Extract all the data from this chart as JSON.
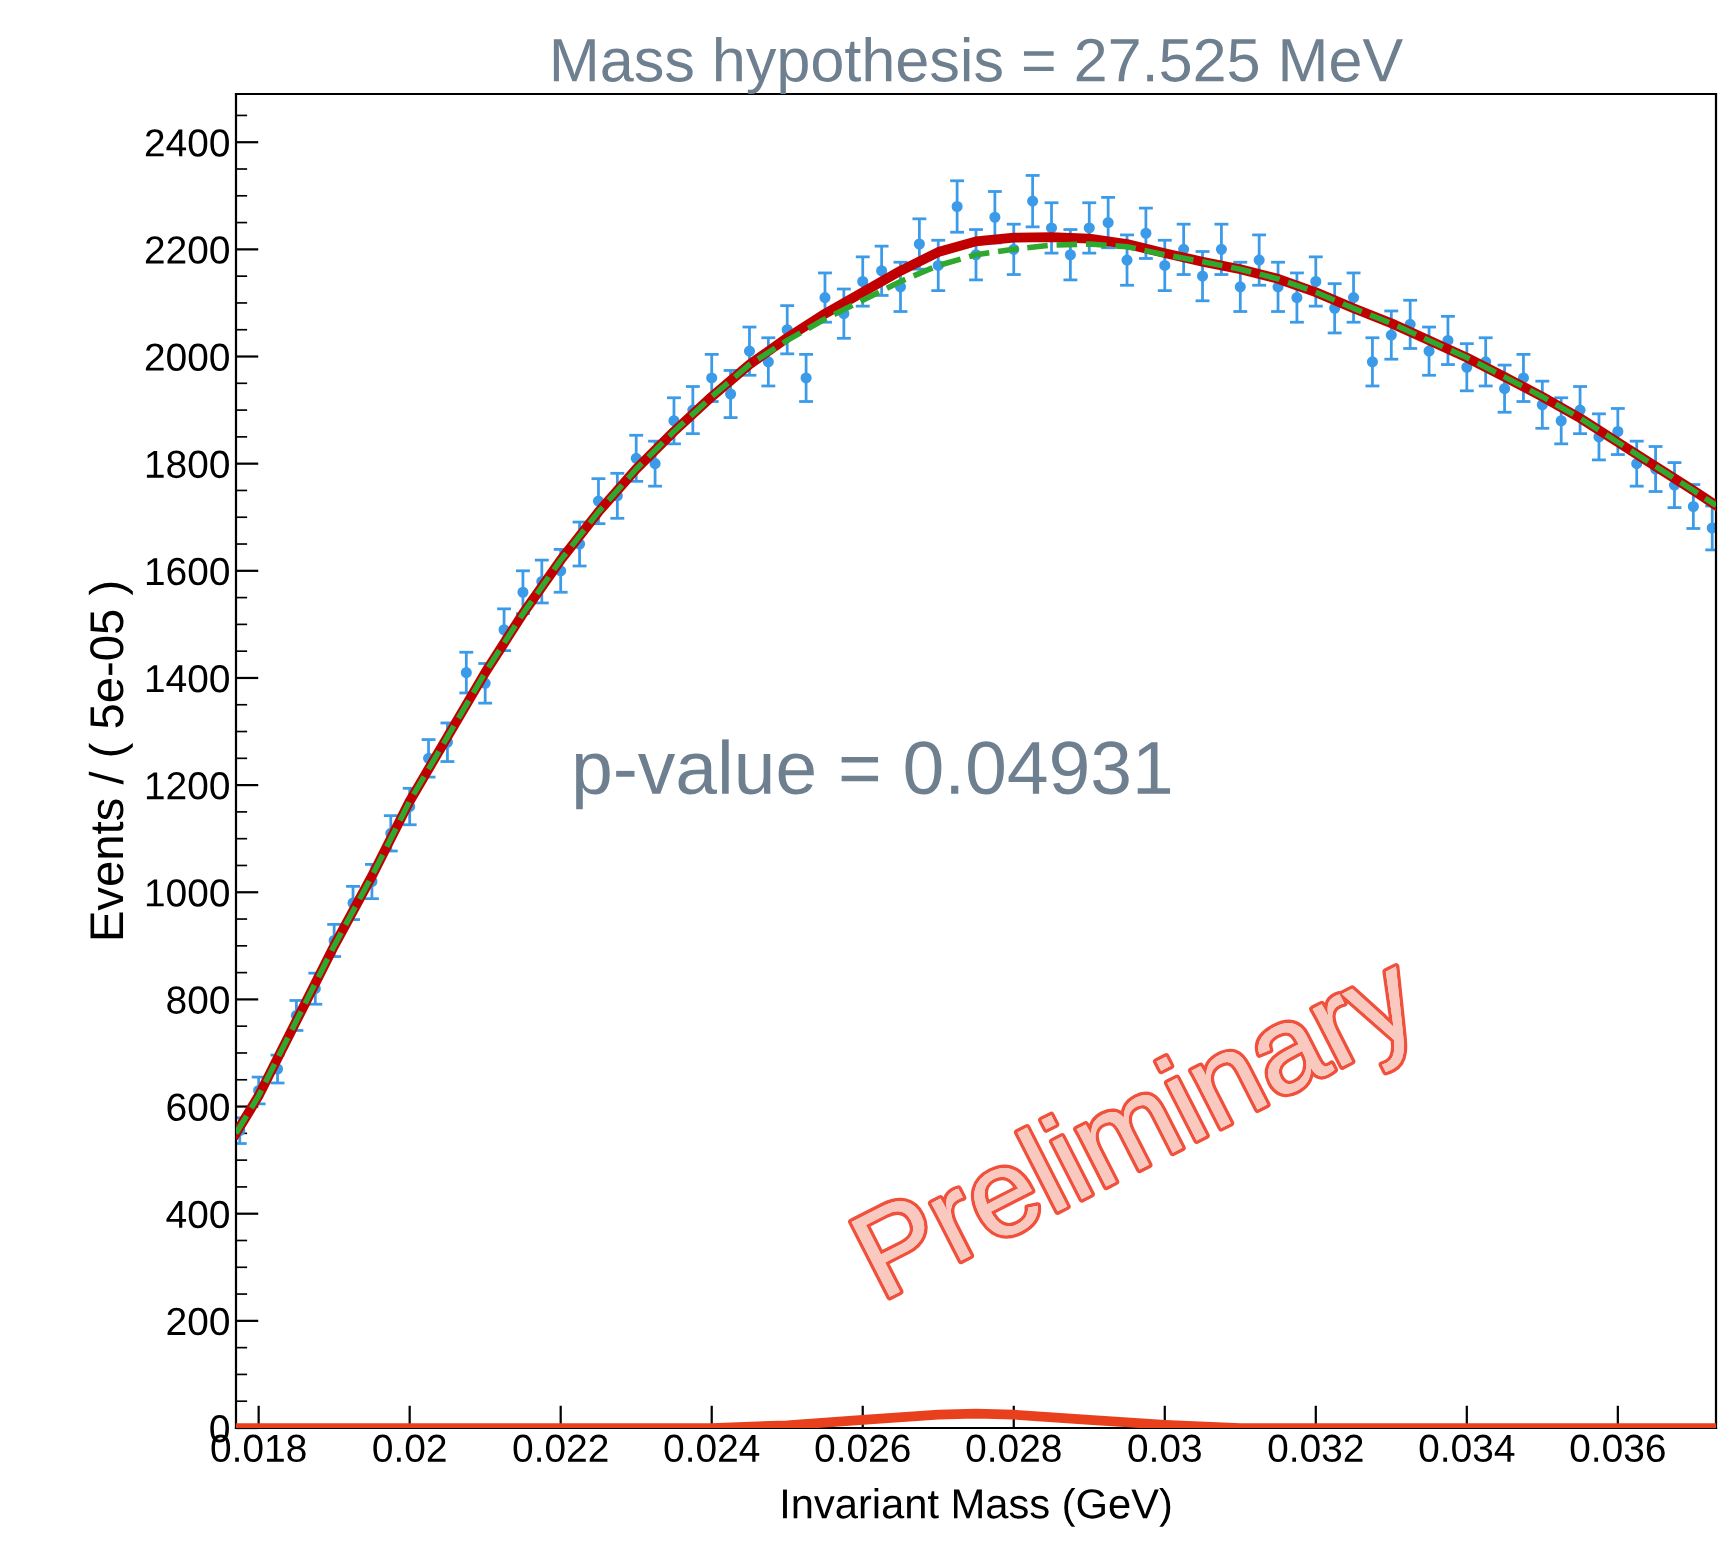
{
  "chart_data": {
    "type": "scatter",
    "title": "Mass hypothesis = 27.525 MeV",
    "xlabel": "Invariant Mass (GeV)",
    "ylabel": "Events / ( 5e-05 )",
    "annotations": [
      "p-value = 0.04931",
      "Preliminary"
    ],
    "xlim": [
      0.0177,
      0.0373
    ],
    "ylim": [
      0,
      2490
    ],
    "xticks": [
      0.018,
      0.02,
      0.022,
      0.024,
      0.026,
      0.028,
      0.03,
      0.032,
      0.034,
      0.036
    ],
    "yticks": [
      0,
      200,
      400,
      600,
      800,
      1000,
      1200,
      1400,
      1600,
      1800,
      2000,
      2200,
      2400
    ],
    "grid": false,
    "legend": false,
    "series": [
      {
        "color": "#3c9be8",
        "marker": "circle",
        "x": [
          0.01775,
          0.018,
          0.01825,
          0.0185,
          0.01875,
          0.019,
          0.01925,
          0.0195,
          0.01975,
          0.02,
          0.02025,
          0.0205,
          0.02075,
          0.021,
          0.02125,
          0.0215,
          0.02175,
          0.022,
          0.02225,
          0.0225,
          0.02275,
          0.023,
          0.02325,
          0.0235,
          0.02375,
          0.024,
          0.02425,
          0.0245,
          0.02475,
          0.025,
          0.02525,
          0.0255,
          0.02575,
          0.026,
          0.02625,
          0.0265,
          0.02675,
          0.027,
          0.02725,
          0.0275,
          0.02775,
          0.028,
          0.02825,
          0.0285,
          0.02875,
          0.029,
          0.02925,
          0.0295,
          0.02975,
          0.03,
          0.03025,
          0.0305,
          0.03075,
          0.031,
          0.03125,
          0.0315,
          0.03175,
          0.032,
          0.03225,
          0.0325,
          0.03275,
          0.033,
          0.03325,
          0.0335,
          0.03375,
          0.034,
          0.03425,
          0.0345,
          0.03475,
          0.035,
          0.03525,
          0.0355,
          0.03575,
          0.036,
          0.03625,
          0.0365,
          0.03675,
          0.037,
          0.03725
        ],
        "values": [
          555,
          630,
          670,
          770,
          820,
          910,
          980,
          1020,
          1110,
          1160,
          1250,
          1280,
          1410,
          1390,
          1490,
          1560,
          1580,
          1600,
          1650,
          1730,
          1740,
          1810,
          1800,
          1880,
          1900,
          1960,
          1930,
          2010,
          1990,
          2050,
          1960,
          2110,
          2080,
          2140,
          2160,
          2130,
          2210,
          2170,
          2280,
          2190,
          2260,
          2200,
          2290,
          2240,
          2190,
          2240,
          2250,
          2180,
          2230,
          2170,
          2200,
          2150,
          2200,
          2130,
          2180,
          2130,
          2110,
          2140,
          2090,
          2110,
          1990,
          2040,
          2060,
          2010,
          2030,
          1980,
          1990,
          1940,
          1960,
          1910,
          1880,
          1900,
          1850,
          1860,
          1800,
          1790,
          1760,
          1720,
          1680
        ],
        "errors": [
          24,
          25,
          26,
          28,
          29,
          30,
          31,
          32,
          33,
          34,
          35,
          36,
          38,
          37,
          39,
          40,
          40,
          40,
          41,
          42,
          42,
          43,
          42,
          43,
          44,
          44,
          44,
          45,
          45,
          45,
          44,
          46,
          46,
          46,
          46,
          46,
          47,
          47,
          48,
          47,
          48,
          47,
          48,
          47,
          47,
          47,
          47,
          47,
          47,
          47,
          47,
          46,
          47,
          46,
          47,
          46,
          46,
          46,
          46,
          46,
          45,
          45,
          45,
          45,
          45,
          44,
          45,
          44,
          44,
          44,
          43,
          44,
          43,
          43,
          42,
          42,
          42,
          41,
          41
        ]
      },
      {
        "type": "line",
        "color": "#c00000",
        "line_style": "solid",
        "x": [
          0.0177,
          0.018,
          0.0185,
          0.019,
          0.0195,
          0.02,
          0.0205,
          0.021,
          0.0215,
          0.022,
          0.0225,
          0.023,
          0.0235,
          0.024,
          0.0245,
          0.025,
          0.0255,
          0.026,
          0.0265,
          0.027,
          0.0275,
          0.028,
          0.0285,
          0.029,
          0.0295,
          0.03,
          0.0305,
          0.031,
          0.0315,
          0.032,
          0.0325,
          0.033,
          0.0335,
          0.034,
          0.0345,
          0.035,
          0.0355,
          0.036,
          0.0365,
          0.037,
          0.0373
        ],
        "values": [
          550,
          620,
          760,
          900,
          1030,
          1170,
          1290,
          1410,
          1520,
          1620,
          1710,
          1790,
          1860,
          1925,
          1985,
          2035,
          2080,
          2120,
          2160,
          2195,
          2215,
          2222,
          2223,
          2220,
          2210,
          2193,
          2177,
          2163,
          2145,
          2120,
          2090,
          2062,
          2030,
          1998,
          1962,
          1925,
          1885,
          1840,
          1795,
          1750,
          1722
        ]
      },
      {
        "type": "line",
        "color": "#2ea82e",
        "line_style": "dashed",
        "x": [
          0.0177,
          0.018,
          0.0185,
          0.019,
          0.0195,
          0.02,
          0.0205,
          0.021,
          0.0215,
          0.022,
          0.0225,
          0.023,
          0.0235,
          0.024,
          0.0245,
          0.025,
          0.0255,
          0.026,
          0.0265,
          0.027,
          0.0275,
          0.028,
          0.0285,
          0.029,
          0.0295,
          0.03,
          0.0305,
          0.031,
          0.0315,
          0.032,
          0.0325,
          0.033,
          0.0335,
          0.034,
          0.0345,
          0.035,
          0.0355,
          0.036,
          0.0365,
          0.037,
          0.0373
        ],
        "values": [
          550,
          620,
          760,
          900,
          1030,
          1170,
          1290,
          1410,
          1520,
          1620,
          1710,
          1790,
          1860,
          1925,
          1985,
          2030,
          2070,
          2105,
          2140,
          2170,
          2190,
          2200,
          2208,
          2210,
          2205,
          2190,
          2177,
          2163,
          2145,
          2120,
          2090,
          2062,
          2030,
          1998,
          1962,
          1925,
          1885,
          1840,
          1795,
          1750,
          1722
        ]
      },
      {
        "type": "line",
        "color": "#e8401c",
        "line_style": "solid",
        "x": [
          0.0177,
          0.024,
          0.025,
          0.026,
          0.027,
          0.0275,
          0.028,
          0.029,
          0.03,
          0.031,
          0.0373
        ],
        "values": [
          0,
          0,
          5,
          15,
          25,
          27,
          25,
          15,
          6,
          0,
          0
        ]
      }
    ]
  }
}
